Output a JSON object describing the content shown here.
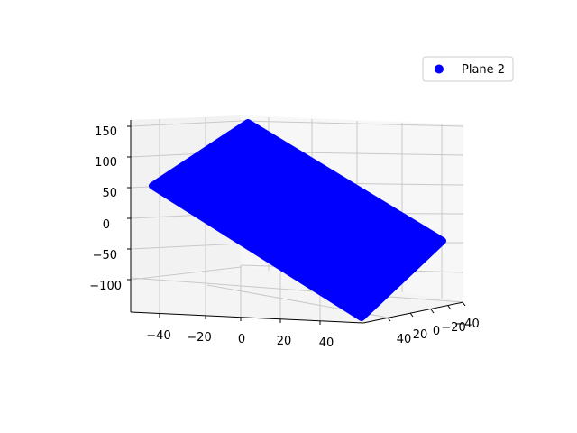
{
  "chart_data": {
    "type": "scatter",
    "projection": "3d",
    "title": "",
    "xlabel": "",
    "ylabel": "",
    "zlabel": "",
    "grid": true,
    "legend_placement": "top-right",
    "series": [
      {
        "name": "Plane 2",
        "color": "#0000ff",
        "marker": "circle",
        "corners": [
          {
            "x": -50,
            "y": 50,
            "z": 150
          },
          {
            "x": 50,
            "y": 50,
            "z": -50
          },
          {
            "x": 50,
            "y": -50,
            "z": -150
          },
          {
            "x": -50,
            "y": -50,
            "z": 50
          }
        ]
      }
    ],
    "x_ticks": [
      "−40",
      "−20",
      "0",
      "20",
      "40"
    ],
    "y_ticks": [
      "−40",
      "−20",
      "0",
      "20",
      "40"
    ],
    "z_ticks": [
      "150",
      "100",
      "50",
      "0",
      "−50",
      "−100"
    ]
  }
}
